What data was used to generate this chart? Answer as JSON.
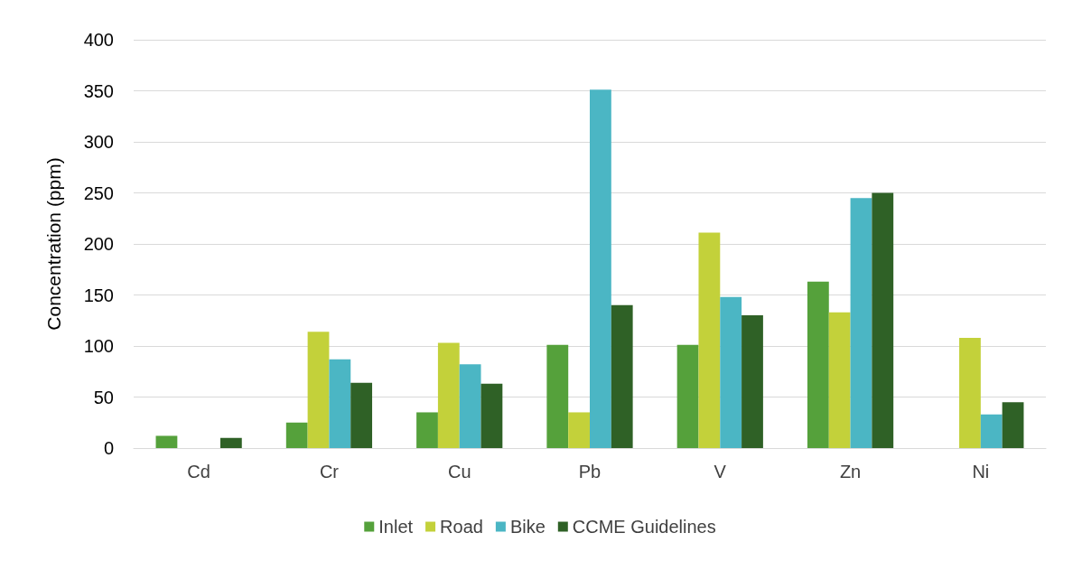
{
  "chart_data": {
    "type": "bar",
    "ylabel": "Concentration (ppm)",
    "categories": [
      "Cd",
      "Cr",
      "Cu",
      "Pb",
      "V",
      "Zn",
      "Ni"
    ],
    "series": [
      {
        "name": "Inlet",
        "color": "#55a13b",
        "values": [
          12,
          25,
          35,
          101,
          101,
          163,
          null
        ]
      },
      {
        "name": "Road",
        "color": "#c3d13a",
        "values": [
          null,
          114,
          103,
          35,
          211,
          133,
          108
        ]
      },
      {
        "name": "Bike",
        "color": "#4bb6c4",
        "values": [
          null,
          87,
          82,
          351,
          148,
          245,
          33
        ]
      },
      {
        "name": "CCME Guidelines",
        "color": "#2f6126",
        "values": [
          10,
          64,
          63,
          140,
          130,
          250,
          45
        ]
      }
    ],
    "ylim": [
      0,
      400
    ],
    "yticks": [
      0,
      50,
      100,
      150,
      200,
      250,
      300,
      350,
      400
    ],
    "grid": "y",
    "legend": "bottom"
  }
}
